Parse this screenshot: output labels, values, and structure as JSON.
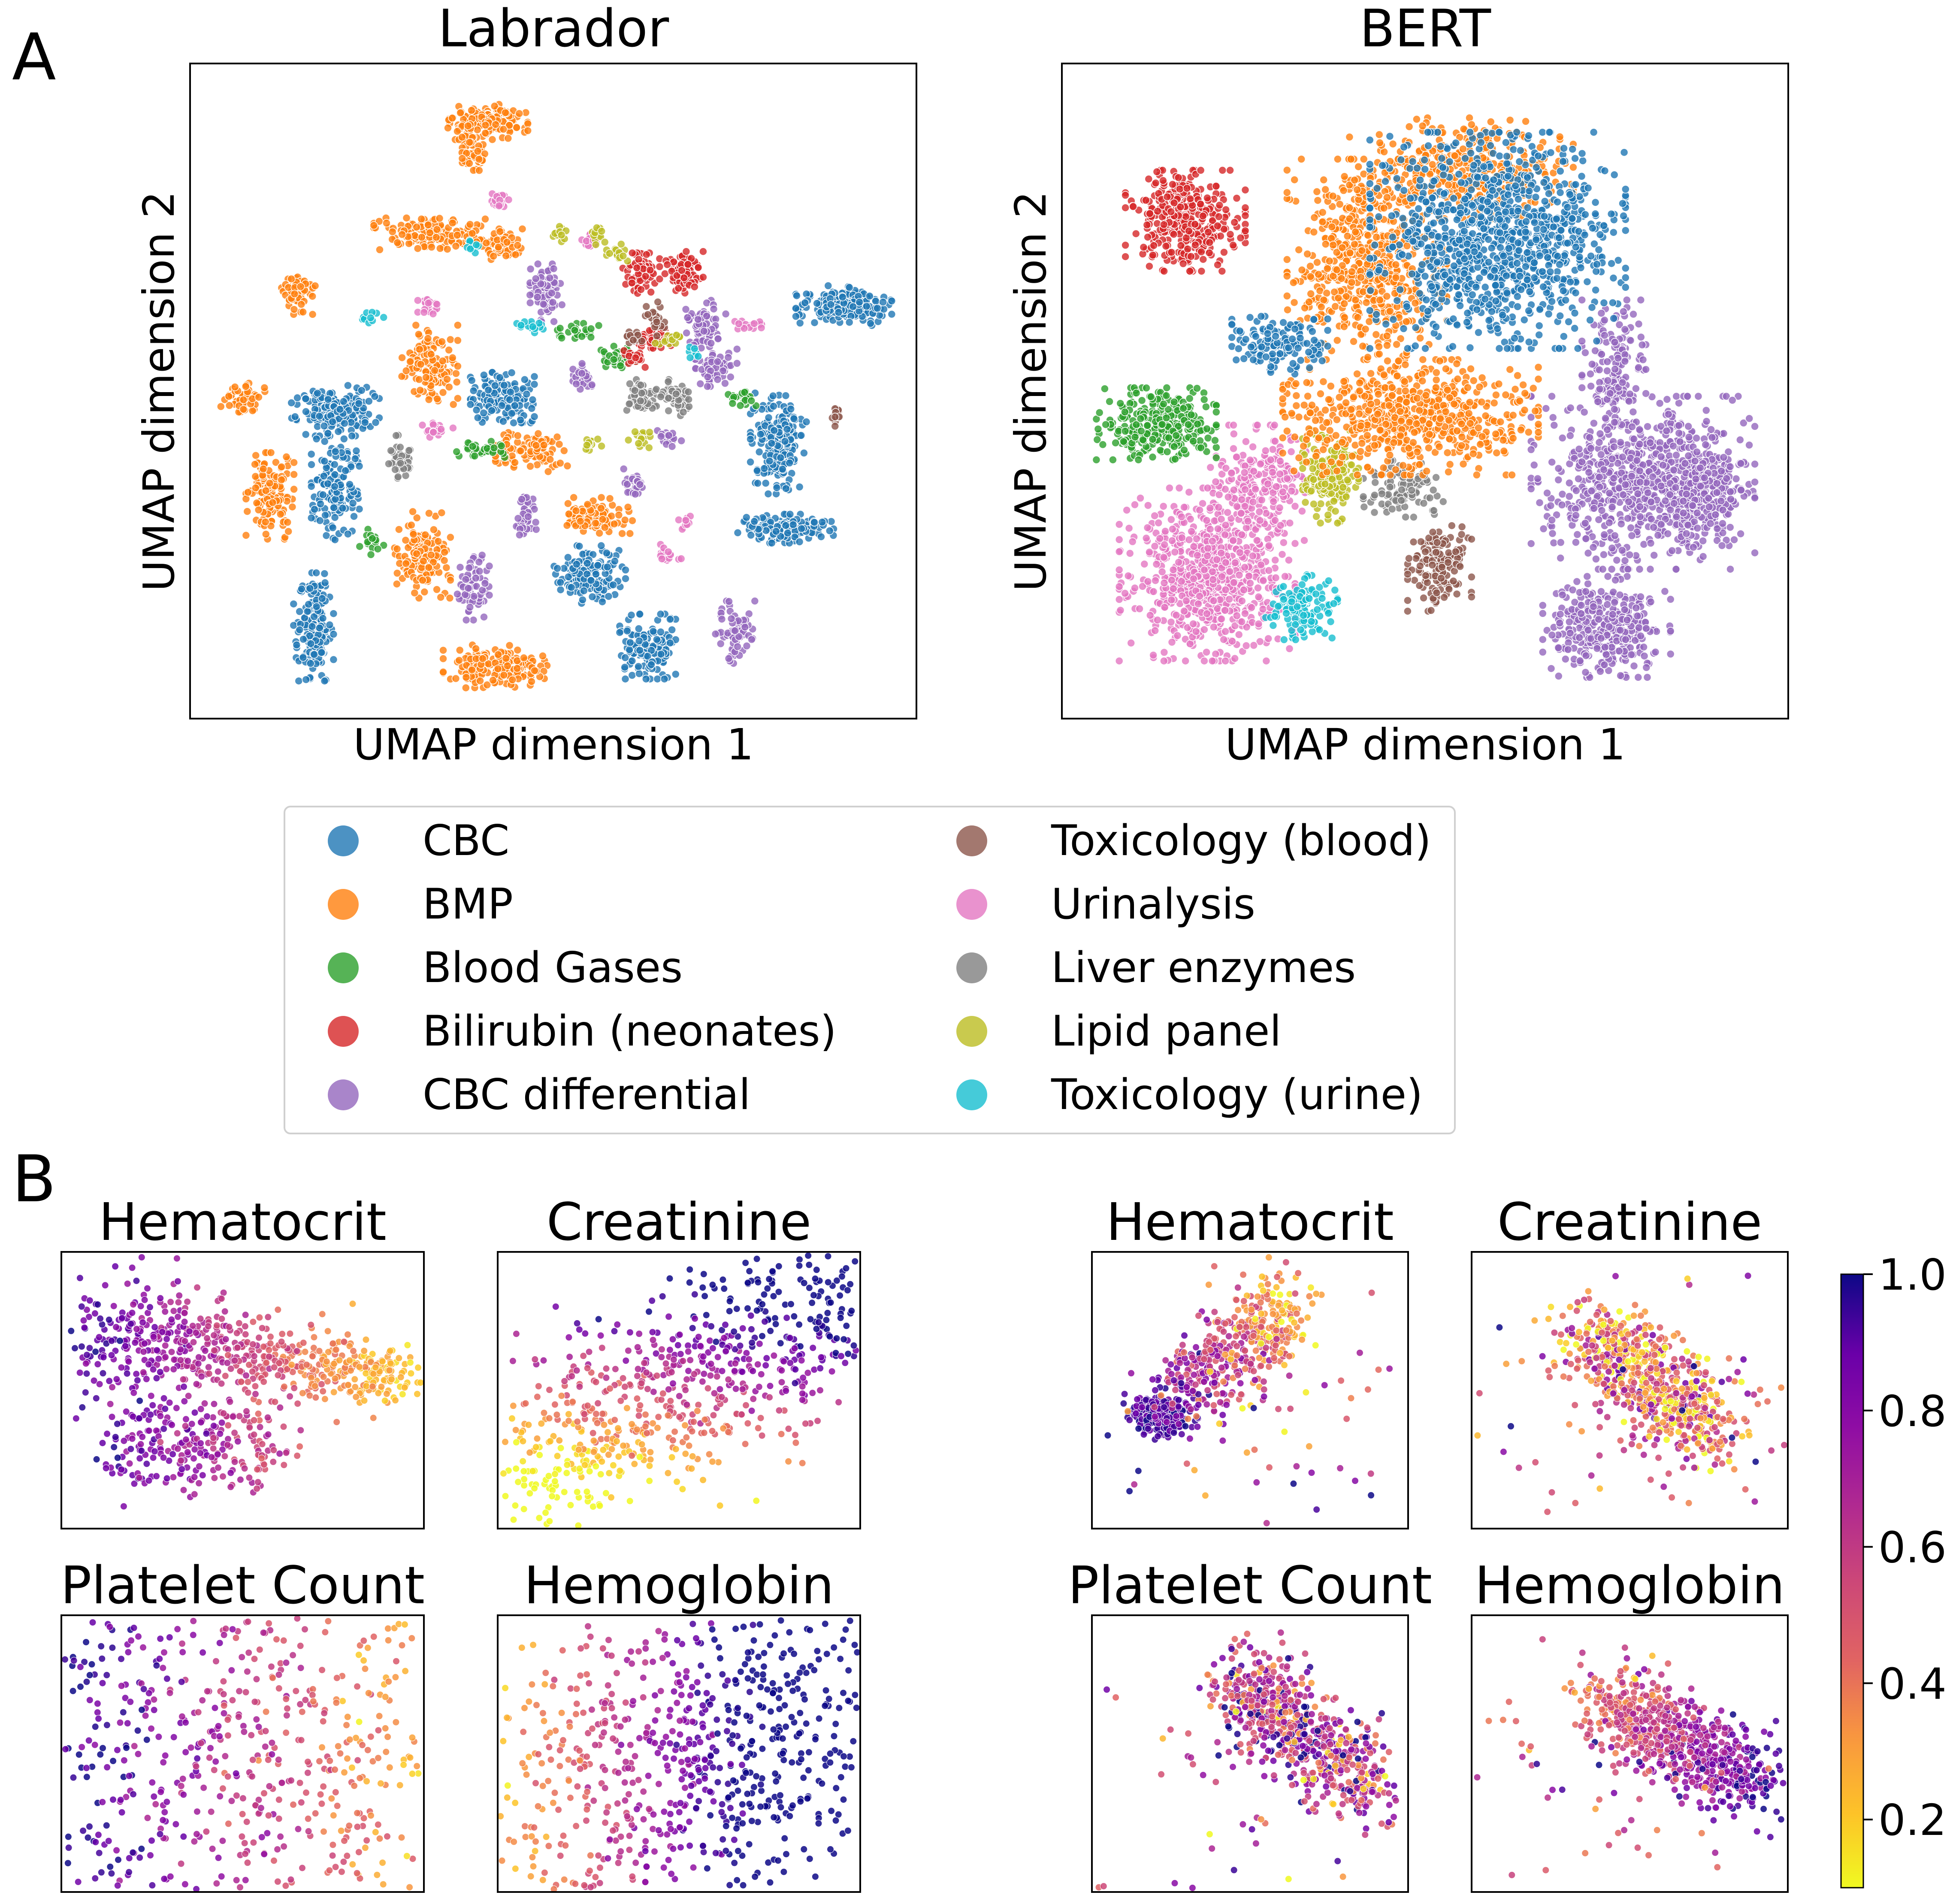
{
  "figure": {
    "panel_labels": [
      "A",
      "B"
    ]
  },
  "chart_data": [
    {
      "type": "scatter",
      "title": "Labrador",
      "xlabel": "UMAP dimension 1",
      "ylabel": "UMAP dimension 2",
      "xlim": [
        0,
        100
      ],
      "ylim": [
        0,
        100
      ],
      "ticks": false,
      "clusters": [
        {
          "cat": 1,
          "x": 41,
          "y": 91,
          "rx": 5,
          "ry": 2.5,
          "n": 160
        },
        {
          "cat": 1,
          "x": 39,
          "y": 86,
          "rx": 1.8,
          "ry": 2.5,
          "n": 50
        },
        {
          "cat": 1,
          "x": 33,
          "y": 74,
          "rx": 7,
          "ry": 2.2,
          "n": 150
        },
        {
          "cat": 1,
          "x": 43,
          "y": 72,
          "rx": 2.5,
          "ry": 2.5,
          "n": 60
        },
        {
          "cat": 1,
          "x": 15,
          "y": 65,
          "rx": 2.2,
          "ry": 3,
          "n": 60
        },
        {
          "cat": 1,
          "x": 33,
          "y": 54,
          "rx": 3.5,
          "ry": 5.5,
          "n": 140
        },
        {
          "cat": 1,
          "x": 7,
          "y": 49,
          "rx": 3,
          "ry": 2,
          "n": 50
        },
        {
          "cat": 1,
          "x": 11,
          "y": 34,
          "rx": 3,
          "ry": 6,
          "n": 140
        },
        {
          "cat": 1,
          "x": 47,
          "y": 41,
          "rx": 4.5,
          "ry": 3,
          "n": 100
        },
        {
          "cat": 1,
          "x": 56,
          "y": 31,
          "rx": 4.5,
          "ry": 2.5,
          "n": 100
        },
        {
          "cat": 1,
          "x": 32,
          "y": 25,
          "rx": 3.5,
          "ry": 6,
          "n": 150
        },
        {
          "cat": 1,
          "x": 42,
          "y": 8,
          "rx": 6.5,
          "ry": 3,
          "n": 170
        },
        {
          "cat": 0,
          "x": 90,
          "y": 63,
          "rx": 6,
          "ry": 2.8,
          "n": 200
        },
        {
          "cat": 0,
          "x": 20,
          "y": 47,
          "rx": 5.5,
          "ry": 3.5,
          "n": 200
        },
        {
          "cat": 0,
          "x": 43,
          "y": 49,
          "rx": 4,
          "ry": 3.5,
          "n": 150
        },
        {
          "cat": 0,
          "x": 20,
          "y": 35,
          "rx": 3,
          "ry": 7,
          "n": 150
        },
        {
          "cat": 0,
          "x": 81,
          "y": 42,
          "rx": 3.5,
          "ry": 7,
          "n": 200
        },
        {
          "cat": 0,
          "x": 82,
          "y": 29,
          "rx": 6,
          "ry": 2,
          "n": 150
        },
        {
          "cat": 0,
          "x": 55,
          "y": 22,
          "rx": 4.5,
          "ry": 4,
          "n": 150
        },
        {
          "cat": 0,
          "x": 17,
          "y": 14,
          "rx": 2.5,
          "ry": 7.5,
          "n": 170
        },
        {
          "cat": 0,
          "x": 63,
          "y": 11,
          "rx": 3.5,
          "ry": 4.5,
          "n": 150
        },
        {
          "cat": 2,
          "x": 53,
          "y": 59,
          "rx": 3,
          "ry": 1.2,
          "n": 25
        },
        {
          "cat": 2,
          "x": 59,
          "y": 55,
          "rx": 2.2,
          "ry": 2.2,
          "n": 40
        },
        {
          "cat": 2,
          "x": 40,
          "y": 41,
          "rx": 3,
          "ry": 1.2,
          "n": 35
        },
        {
          "cat": 2,
          "x": 76,
          "y": 49,
          "rx": 1.8,
          "ry": 1.5,
          "n": 22
        },
        {
          "cat": 2,
          "x": 25,
          "y": 27,
          "rx": 1.5,
          "ry": 1.8,
          "n": 18
        },
        {
          "cat": 3,
          "x": 62,
          "y": 68,
          "rx": 2.4,
          "ry": 2.8,
          "n": 80
        },
        {
          "cat": 3,
          "x": 68,
          "y": 68,
          "rx": 2.4,
          "ry": 3,
          "n": 80
        },
        {
          "cat": 3,
          "x": 64,
          "y": 58,
          "rx": 2,
          "ry": 2,
          "n": 40
        },
        {
          "cat": 3,
          "x": 61,
          "y": 55,
          "rx": 1.5,
          "ry": 1.5,
          "n": 20
        },
        {
          "cat": 4,
          "x": 49,
          "y": 65,
          "rx": 2,
          "ry": 4,
          "n": 70
        },
        {
          "cat": 4,
          "x": 54,
          "y": 52,
          "rx": 1.5,
          "ry": 2,
          "n": 25
        },
        {
          "cat": 4,
          "x": 71,
          "y": 60,
          "rx": 2.5,
          "ry": 3.5,
          "n": 70
        },
        {
          "cat": 4,
          "x": 72,
          "y": 54,
          "rx": 3,
          "ry": 3,
          "n": 60
        },
        {
          "cat": 4,
          "x": 66,
          "y": 43,
          "rx": 1.5,
          "ry": 1.5,
          "n": 20
        },
        {
          "cat": 4,
          "x": 61,
          "y": 36,
          "rx": 1.5,
          "ry": 2,
          "n": 25
        },
        {
          "cat": 4,
          "x": 46,
          "y": 31,
          "rx": 1.5,
          "ry": 3.5,
          "n": 40
        },
        {
          "cat": 4,
          "x": 39,
          "y": 20,
          "rx": 2,
          "ry": 4.5,
          "n": 70
        },
        {
          "cat": 4,
          "x": 75,
          "y": 13,
          "rx": 2.5,
          "ry": 4.5,
          "n": 70
        },
        {
          "cat": 5,
          "x": 64,
          "y": 61,
          "rx": 1.2,
          "ry": 2.5,
          "n": 25
        },
        {
          "cat": 5,
          "x": 61,
          "y": 58,
          "rx": 1.2,
          "ry": 1.2,
          "n": 12
        },
        {
          "cat": 5,
          "x": 89,
          "y": 46,
          "rx": 1,
          "ry": 1.6,
          "n": 15
        },
        {
          "cat": 6,
          "x": 43,
          "y": 79,
          "rx": 1.8,
          "ry": 1.2,
          "n": 20
        },
        {
          "cat": 6,
          "x": 33,
          "y": 63,
          "rx": 1.5,
          "ry": 1.2,
          "n": 20
        },
        {
          "cat": 6,
          "x": 34,
          "y": 44,
          "rx": 2,
          "ry": 1,
          "n": 20
        },
        {
          "cat": 6,
          "x": 55,
          "y": 73,
          "rx": 1.2,
          "ry": 1,
          "n": 12
        },
        {
          "cat": 6,
          "x": 77,
          "y": 60,
          "rx": 2,
          "ry": 1,
          "n": 15
        },
        {
          "cat": 6,
          "x": 68,
          "y": 30,
          "rx": 1.2,
          "ry": 1.2,
          "n": 12
        },
        {
          "cat": 6,
          "x": 66,
          "y": 25,
          "rx": 1.5,
          "ry": 1.5,
          "n": 15
        },
        {
          "cat": 7,
          "x": 29,
          "y": 40,
          "rx": 1.5,
          "ry": 3,
          "n": 40
        },
        {
          "cat": 7,
          "x": 62,
          "y": 49,
          "rx": 2,
          "ry": 2.5,
          "n": 60
        },
        {
          "cat": 7,
          "x": 67,
          "y": 49,
          "rx": 2,
          "ry": 2.5,
          "n": 60
        },
        {
          "cat": 8,
          "x": 51,
          "y": 74,
          "rx": 1,
          "ry": 1.5,
          "n": 15
        },
        {
          "cat": 8,
          "x": 56,
          "y": 74,
          "rx": 1,
          "ry": 1.5,
          "n": 15
        },
        {
          "cat": 8,
          "x": 59,
          "y": 71,
          "rx": 1.5,
          "ry": 1.5,
          "n": 15
        },
        {
          "cat": 8,
          "x": 66,
          "y": 58,
          "rx": 1.8,
          "ry": 1,
          "n": 15
        },
        {
          "cat": 8,
          "x": 55,
          "y": 42,
          "rx": 1.5,
          "ry": 1,
          "n": 15
        },
        {
          "cat": 8,
          "x": 62,
          "y": 43,
          "rx": 1.5,
          "ry": 1.5,
          "n": 15
        },
        {
          "cat": 9,
          "x": 39,
          "y": 72,
          "rx": 1.2,
          "ry": 1,
          "n": 10
        },
        {
          "cat": 9,
          "x": 25,
          "y": 61,
          "rx": 1.5,
          "ry": 1,
          "n": 10
        },
        {
          "cat": 9,
          "x": 47,
          "y": 60,
          "rx": 3,
          "ry": 1,
          "n": 15
        },
        {
          "cat": 9,
          "x": 69,
          "y": 56,
          "rx": 1,
          "ry": 1,
          "n": 8
        }
      ]
    },
    {
      "type": "scatter",
      "title": "BERT",
      "xlabel": "UMAP dimension 1",
      "ylabel": "UMAP dimension 2",
      "xlim": [
        0,
        100
      ],
      "ylim": [
        0,
        100
      ],
      "ticks": false,
      "clusters": [
        {
          "cat": 4,
          "x": 80,
          "y": 36,
          "rx": 14,
          "ry": 12,
          "n": 750
        },
        {
          "cat": 4,
          "x": 75,
          "y": 14,
          "rx": 8,
          "ry": 7,
          "n": 350
        },
        {
          "cat": 4,
          "x": 88,
          "y": 35,
          "rx": 5,
          "ry": 7,
          "n": 200
        },
        {
          "cat": 4,
          "x": 76,
          "y": 54,
          "rx": 4,
          "ry": 9,
          "n": 150
        },
        {
          "cat": 6,
          "x": 20,
          "y": 22,
          "rx": 11,
          "ry": 12,
          "n": 750
        },
        {
          "cat": 6,
          "x": 27,
          "y": 36,
          "rx": 6,
          "ry": 8,
          "n": 200
        },
        {
          "cat": 9,
          "x": 33,
          "y": 17,
          "rx": 4.5,
          "ry": 4.5,
          "n": 120
        },
        {
          "cat": 5,
          "x": 52,
          "y": 23,
          "rx": 4,
          "ry": 6,
          "n": 150
        },
        {
          "cat": 7,
          "x": 47,
          "y": 35,
          "rx": 5,
          "ry": 4,
          "n": 100
        },
        {
          "cat": 8,
          "x": 37,
          "y": 37,
          "rx": 3.5,
          "ry": 6.5,
          "n": 180
        },
        {
          "cat": 2,
          "x": 13,
          "y": 45,
          "rx": 7.5,
          "ry": 5,
          "n": 300
        },
        {
          "cat": 3,
          "x": 17,
          "y": 76,
          "rx": 7.5,
          "ry": 7,
          "n": 350
        },
        {
          "cat": 1,
          "x": 48,
          "y": 46,
          "rx": 16,
          "ry": 8,
          "n": 650
        },
        {
          "cat": 1,
          "x": 42,
          "y": 70,
          "rx": 10,
          "ry": 14,
          "n": 600
        },
        {
          "cat": 1,
          "x": 55,
          "y": 84,
          "rx": 14,
          "ry": 7,
          "n": 350
        },
        {
          "cat": 0,
          "x": 60,
          "y": 73,
          "rx": 16,
          "ry": 15,
          "n": 1100
        },
        {
          "cat": 0,
          "x": 30,
          "y": 57,
          "rx": 6,
          "ry": 4,
          "n": 150
        }
      ]
    },
    {
      "type": "scatter",
      "title": "Hematocrit",
      "xlim": [
        0,
        100
      ],
      "ylim": [
        0,
        100
      ],
      "ticks": false,
      "field": 0
    },
    {
      "type": "scatter",
      "title": "Creatinine",
      "xlim": [
        0,
        100
      ],
      "ylim": [
        0,
        100
      ],
      "ticks": false,
      "field": 1
    },
    {
      "type": "scatter",
      "title": "Platelet Count",
      "xlim": [
        0,
        100
      ],
      "ylim": [
        0,
        100
      ],
      "ticks": false,
      "field": 2
    },
    {
      "type": "scatter",
      "title": "Hemoglobin",
      "xlim": [
        0,
        100
      ],
      "ylim": [
        0,
        100
      ],
      "ticks": false,
      "field": 3
    },
    {
      "type": "scatter",
      "title": "Hematocrit",
      "xlim": [
        0,
        100
      ],
      "ylim": [
        0,
        100
      ],
      "ticks": false,
      "field": 4
    },
    {
      "type": "scatter",
      "title": "Creatinine",
      "xlim": [
        0,
        100
      ],
      "ylim": [
        0,
        100
      ],
      "ticks": false,
      "field": 5
    },
    {
      "type": "scatter",
      "title": "Platelet Count",
      "xlim": [
        0,
        100
      ],
      "ylim": [
        0,
        100
      ],
      "ticks": false,
      "field": 6
    },
    {
      "type": "scatter",
      "title": "Hemoglobin",
      "xlim": [
        0,
        100
      ],
      "ylim": [
        0,
        100
      ],
      "ticks": false,
      "field": 7
    }
  ],
  "legend": {
    "placement": "below panel A",
    "categories": [
      {
        "label": "CBC",
        "color": "#1f77b4"
      },
      {
        "label": "BMP",
        "color": "#ff7f0e"
      },
      {
        "label": "Blood Gases",
        "color": "#2ca02c"
      },
      {
        "label": "Bilirubin (neonates)",
        "color": "#d62728"
      },
      {
        "label": "CBC differential",
        "color": "#9467bd"
      },
      {
        "label": "Toxicology (blood)",
        "color": "#8c564b"
      },
      {
        "label": "Urinalysis",
        "color": "#e377c2"
      },
      {
        "label": "Liver enzymes",
        "color": "#7f7f7f"
      },
      {
        "label": "Lipid panel",
        "color": "#bcbd22"
      },
      {
        "label": "Toxicology (urine)",
        "color": "#17becf"
      }
    ]
  },
  "colorbar": {
    "colormap": "plasma_r",
    "range": [
      0.1,
      1.0
    ],
    "ticks": [
      "0.2",
      "0.4",
      "0.6",
      "0.8",
      "1.0"
    ]
  }
}
